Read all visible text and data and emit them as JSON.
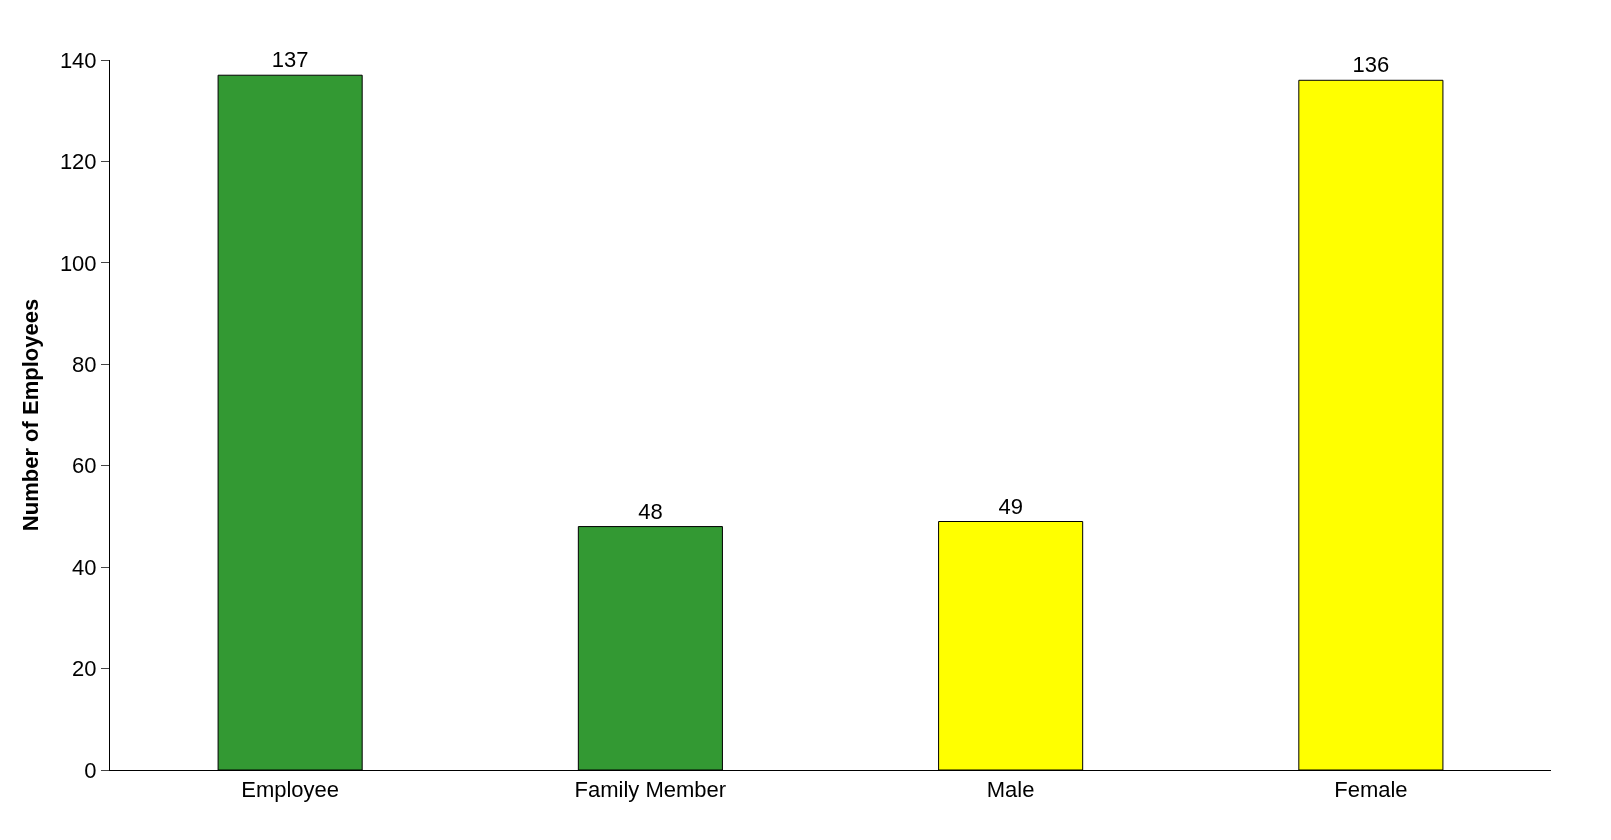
{
  "chart_data": {
    "type": "bar",
    "ylabel": "Number of Employees",
    "categories": [
      "Employee",
      "Family Member",
      "Male",
      "Female"
    ],
    "values": [
      137,
      48,
      49,
      136
    ],
    "colors": [
      "#339933",
      "#339933",
      "#ffff00",
      "#ffff00"
    ],
    "ylim": [
      0,
      140
    ],
    "yticks": [
      0,
      20,
      40,
      60,
      80,
      100,
      120,
      140
    ],
    "data_labels": true
  }
}
